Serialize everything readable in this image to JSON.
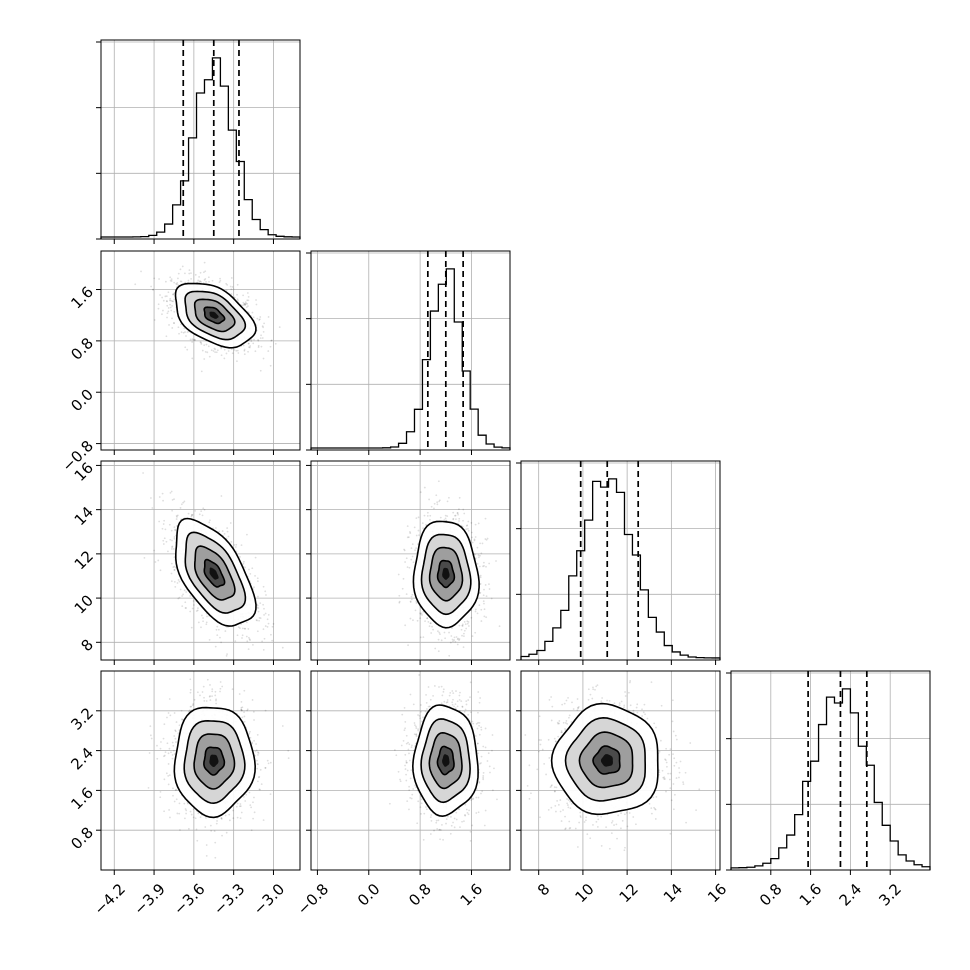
{
  "chart_data": {
    "type": "corner",
    "title": "",
    "grid": true,
    "parameters": [
      {
        "index": 0,
        "range": [
          -4.3,
          -2.8
        ],
        "ticks": [
          -4.2,
          -3.9,
          -3.6,
          -3.3,
          -3.0
        ],
        "tick_labels": [
          "−4.2",
          "−3.9",
          "−3.6",
          "−3.3",
          "−3.0"
        ],
        "mean": -3.45,
        "sd": 0.15,
        "quantiles": [
          -3.68,
          -3.45,
          -3.26
        ]
      },
      {
        "index": 1,
        "range": [
          -0.9,
          2.2
        ],
        "ticks": [
          -0.8,
          0.0,
          0.8,
          1.6
        ],
        "tick_labels": [
          "−0.8",
          "0.0",
          "0.8",
          "1.6"
        ],
        "mean": 1.2,
        "sd": 0.25,
        "quantiles": [
          0.92,
          1.2,
          1.47
        ]
      },
      {
        "index": 2,
        "range": [
          7.2,
          16.2
        ],
        "ticks": [
          8,
          10,
          12,
          14,
          16
        ],
        "tick_labels": [
          "8",
          "10",
          "12",
          "14",
          "16"
        ],
        "mean": 11.1,
        "sd": 1.2,
        "quantiles": [
          9.9,
          11.1,
          12.5
        ]
      },
      {
        "index": 3,
        "range": [
          0.0,
          4.0
        ],
        "ticks": [
          0.8,
          1.6,
          2.4,
          3.2
        ],
        "tick_labels": [
          "0.8",
          "1.6",
          "2.4",
          "3.2"
        ],
        "mean": 2.2,
        "sd": 0.55,
        "quantiles": [
          1.55,
          2.2,
          2.73
        ]
      }
    ],
    "correlations": {
      "1-0": -0.45,
      "2-0": -0.55,
      "2-1": -0.05,
      "3-0": 0.0,
      "3-1": 0.0,
      "3-2": 0.0
    },
    "contour_levels": [
      0.5,
      1.0,
      1.5,
      2.0
    ],
    "scatter_points_per_panel": 1400
  }
}
